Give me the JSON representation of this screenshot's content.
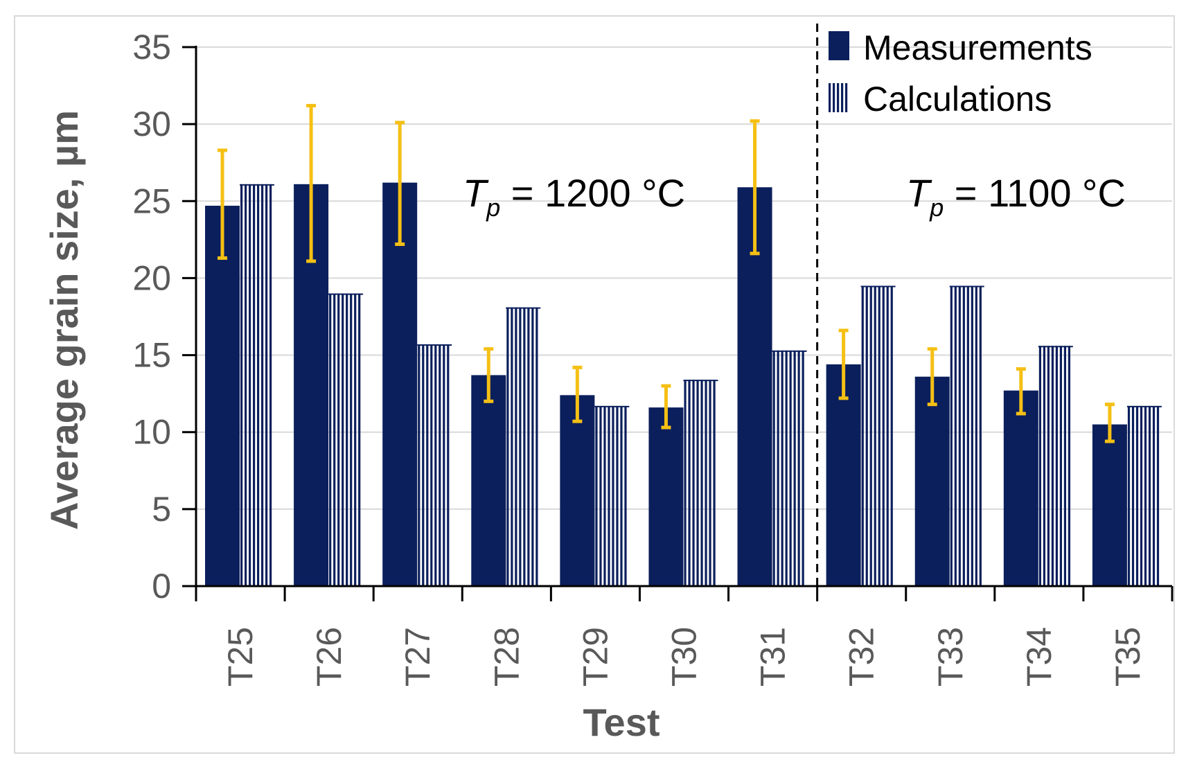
{
  "chart_data": {
    "type": "bar",
    "xlabel": "Test",
    "ylabel": "Average grain size, µm",
    "ylim": [
      0,
      35
    ],
    "yticks": [
      0,
      5,
      10,
      15,
      20,
      25,
      30,
      35
    ],
    "categories": [
      "T25",
      "T26",
      "T27",
      "T28",
      "T29",
      "T30",
      "T31",
      "T32",
      "T33",
      "T34",
      "T35"
    ],
    "series": [
      {
        "name": "Measurements",
        "color": "#0b1f5c",
        "pattern": "solid",
        "values": [
          24.7,
          26.1,
          26.2,
          13.7,
          12.4,
          11.6,
          25.9,
          14.4,
          13.6,
          12.7,
          10.5
        ],
        "error_low": [
          21.3,
          21.1,
          22.2,
          12.0,
          10.7,
          10.3,
          21.6,
          12.2,
          11.8,
          11.2,
          9.4
        ],
        "error_high": [
          28.3,
          31.2,
          30.1,
          15.4,
          14.2,
          13.0,
          30.2,
          16.6,
          15.4,
          14.1,
          11.8
        ]
      },
      {
        "name": "Calculations",
        "color": "#0b1f5c",
        "pattern": "vertical-stripes",
        "values": [
          26.1,
          19.0,
          15.7,
          18.1,
          11.7,
          13.4,
          15.3,
          19.5,
          19.5,
          15.6,
          11.7
        ]
      }
    ],
    "error_bar_color": "#f5c015",
    "divider_after": "T31",
    "annotations": [
      {
        "italic": "T",
        "sub": "p",
        "text": " = 1200 °C"
      },
      {
        "italic": "T",
        "sub": "p",
        "text": " = 1100 °C"
      }
    ],
    "legend_position": "top-right"
  }
}
